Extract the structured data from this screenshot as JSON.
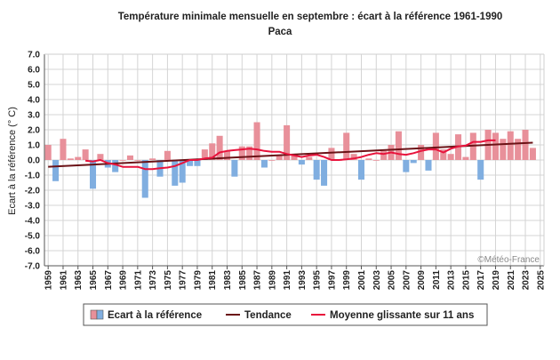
{
  "chart_data": {
    "type": "bar",
    "title": "Température minimale mensuelle en septembre : écart à la référence 1961-1990",
    "subtitle": "Paca",
    "ylabel": "Ecart à la référence (° C)",
    "xlabel": "",
    "ylim": [
      -7.0,
      7.0
    ],
    "yticks": [
      "7.0",
      "6.0",
      "5.0",
      "4.0",
      "3.0",
      "2.0",
      "1.0",
      "0.0",
      "-1.0",
      "-2.0",
      "-3.0",
      "-4.0",
      "-5.0",
      "-6.0",
      "-7.0"
    ],
    "xticks": [
      "1959",
      "1961",
      "1963",
      "1965",
      "1967",
      "1969",
      "1971",
      "1973",
      "1975",
      "1977",
      "1979",
      "1981",
      "1983",
      "1985",
      "1987",
      "1989",
      "1991",
      "1993",
      "1995",
      "1997",
      "1999",
      "2001",
      "2003",
      "2005",
      "2007",
      "2009",
      "2011",
      "2013",
      "2015",
      "2017",
      "2019",
      "2021",
      "2023",
      "2025"
    ],
    "grid": true,
    "legend_position": "bottom",
    "credit": "©Météo-France",
    "colors": {
      "positive_bar": "#e8909a",
      "negative_bar": "#80aee0",
      "trend": "#6b1216",
      "moving_average": "#e8133c",
      "grid": "#d4d4d4"
    },
    "x": [
      1959,
      1960,
      1961,
      1962,
      1963,
      1964,
      1965,
      1966,
      1967,
      1968,
      1969,
      1970,
      1971,
      1972,
      1973,
      1974,
      1975,
      1976,
      1977,
      1978,
      1979,
      1980,
      1981,
      1982,
      1983,
      1984,
      1985,
      1986,
      1987,
      1988,
      1989,
      1990,
      1991,
      1992,
      1993,
      1994,
      1995,
      1996,
      1997,
      1998,
      1999,
      2000,
      2001,
      2002,
      2003,
      2004,
      2005,
      2006,
      2007,
      2008,
      2009,
      2010,
      2011,
      2012,
      2013,
      2014,
      2015,
      2016,
      2017,
      2018,
      2019,
      2020,
      2021,
      2022,
      2023,
      2024
    ],
    "series": [
      {
        "name": "Ecart à la référence",
        "type": "bar",
        "values": [
          1.0,
          -1.4,
          1.4,
          0.1,
          0.2,
          0.7,
          -1.9,
          0.4,
          -0.5,
          -0.8,
          0.0,
          0.3,
          0.0,
          -2.5,
          0.1,
          -1.1,
          0.6,
          -1.7,
          -1.5,
          -0.4,
          -0.4,
          0.7,
          1.1,
          1.6,
          0.6,
          -1.1,
          0.9,
          0.9,
          2.5,
          -0.5,
          0.0,
          0.3,
          2.3,
          0.3,
          -0.3,
          0.2,
          -1.3,
          -1.7,
          0.8,
          0.0,
          1.8,
          0.4,
          -1.3,
          0.1,
          0.0,
          0.6,
          1.0,
          1.9,
          -0.8,
          -0.2,
          1.0,
          -0.7,
          1.8,
          0.7,
          0.4,
          1.7,
          0.2,
          1.8,
          -1.3,
          2.0,
          1.8,
          1.4,
          1.9,
          1.4,
          2.0,
          0.8
        ]
      },
      {
        "name": "Tendance",
        "type": "line",
        "x": [
          1959,
          2024
        ],
        "values": [
          -0.45,
          1.15
        ]
      },
      {
        "name": "Moyenne glissante sur 11 ans",
        "type": "line",
        "x": [
          1964,
          1965,
          1966,
          1967,
          1968,
          1969,
          1970,
          1971,
          1972,
          1973,
          1974,
          1975,
          1976,
          1977,
          1978,
          1979,
          1980,
          1981,
          1982,
          1983,
          1984,
          1985,
          1986,
          1987,
          1988,
          1989,
          1990,
          1991,
          1992,
          1993,
          1994,
          1995,
          1996,
          1997,
          1998,
          1999,
          2000,
          2001,
          2002,
          2003,
          2004,
          2005,
          2006,
          2007,
          2008,
          2009,
          2010,
          2011,
          2012,
          2013,
          2014,
          2015,
          2016,
          2017,
          2018,
          2019
        ],
        "values": [
          -0.05,
          -0.1,
          0.0,
          -0.2,
          -0.3,
          -0.45,
          -0.45,
          -0.45,
          -0.6,
          -0.6,
          -0.55,
          -0.5,
          -0.4,
          -0.2,
          0.0,
          0.0,
          0.1,
          0.15,
          0.5,
          0.6,
          0.65,
          0.7,
          0.75,
          0.7,
          0.6,
          0.55,
          0.55,
          0.4,
          0.3,
          0.2,
          0.3,
          0.35,
          0.2,
          0.0,
          0.0,
          0.05,
          0.1,
          0.2,
          0.35,
          0.45,
          0.4,
          0.5,
          0.4,
          0.35,
          0.45,
          0.6,
          0.7,
          0.7,
          0.5,
          0.75,
          0.9,
          0.95,
          1.2,
          1.2,
          1.3,
          1.3
        ]
      }
    ]
  }
}
